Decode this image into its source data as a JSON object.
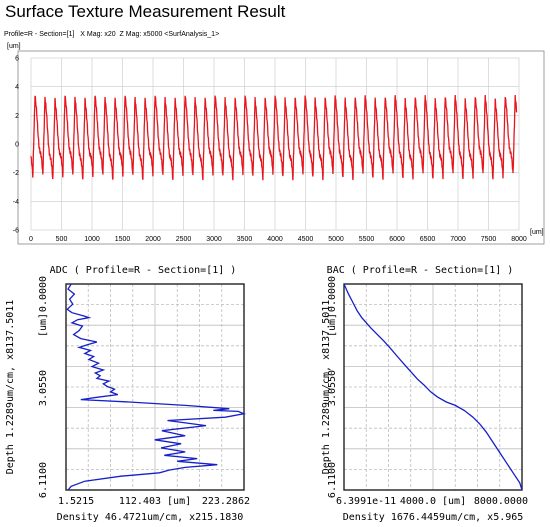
{
  "page_title": "Surface Texture Measurement Result",
  "profile_header": "Profile=R - Section=[1]   X Mag: x20  Z Mag: x5000 <SurfAnalysis_1>",
  "colors": {
    "profile": "#e8141c",
    "curve": "#1520c8",
    "grid": "#bdbdbd",
    "frame": "#222222"
  },
  "chart_data": [
    {
      "type": "line",
      "name": "profile",
      "unit_x": "[um]",
      "unit_y": "[um]",
      "xlim": [
        0,
        8000
      ],
      "ylim": [
        -6,
        6
      ],
      "xticks": [
        "0",
        "500",
        "1000",
        "1500",
        "2000",
        "2500",
        "3000",
        "3500",
        "4000",
        "4500",
        "5000",
        "5500",
        "6000",
        "6500",
        "7000",
        "7500",
        "8000"
      ],
      "yticks": [
        "6",
        "4",
        "2",
        "0",
        "-2",
        "-4",
        "-6"
      ],
      "x_start": 0,
      "x_end": 7960,
      "period": 164,
      "peak_value": 3.3,
      "trough_value": -2.3,
      "grid": true
    },
    {
      "type": "line",
      "title": "ADC ( Profile=R - Section=[1] )",
      "ylabel": "Depth 1.2289um/cm, x8137.5011",
      "xlabel": "Density 46.4721um/cm, x215.1830",
      "ytick_labels": [
        "0.0000",
        "[um]",
        "3.0550",
        "6.1100"
      ],
      "xtick_labels": [
        "1.5215",
        "112.403 [um]",
        "223.2862"
      ],
      "xlim": [
        1.5215,
        223.2862
      ],
      "ylim": [
        0,
        6.11
      ],
      "x": [
        8,
        4,
        12,
        6,
        10,
        3,
        9,
        24,
        30,
        16,
        9,
        22,
        18,
        11,
        20,
        40,
        28,
        18,
        32,
        25,
        36,
        30,
        42,
        34,
        48,
        38,
        44,
        40,
        55,
        48,
        53,
        62,
        57,
        66,
        40,
        20,
        80,
        150,
        205,
        185,
        216,
        223,
        200,
        128,
        176,
        121,
        150,
        112,
        145,
        120,
        150,
        124,
        165,
        140,
        190,
        150,
        130,
        118,
        70,
        25,
        8,
        4
      ],
      "y": [
        0.0,
        0.15,
        0.3,
        0.45,
        0.6,
        0.75,
        0.85,
        0.95,
        1.0,
        1.06,
        1.15,
        1.25,
        1.38,
        1.5,
        1.62,
        1.72,
        1.8,
        1.88,
        1.97,
        2.06,
        2.15,
        2.24,
        2.35,
        2.45,
        2.55,
        2.64,
        2.72,
        2.8,
        2.88,
        2.96,
        3.04,
        3.12,
        3.2,
        3.28,
        3.36,
        3.43,
        3.5,
        3.6,
        3.7,
        3.75,
        3.78,
        3.85,
        3.95,
        4.05,
        4.2,
        4.35,
        4.5,
        4.62,
        4.74,
        4.86,
        4.98,
        5.08,
        5.18,
        5.26,
        5.36,
        5.44,
        5.52,
        5.6,
        5.7,
        5.85,
        6.0,
        6.11
      ],
      "grid": true
    },
    {
      "type": "line",
      "title": "BAC ( Profile=R - Section=[1] )",
      "ylabel": "Depth 1.2289um/cm, x8137.5011",
      "xlabel": "Density 1676.4459um/cm, x5.965",
      "ytick_labels": [
        "0.0000",
        "[um]",
        "3.0550",
        "6.1100"
      ],
      "xtick_labels": [
        "6.3991e-11",
        "4000.0 [um]",
        "8000.0000"
      ],
      "xlim": [
        0,
        8000
      ],
      "ylim": [
        0,
        6.11
      ],
      "x": [
        0,
        200,
        400,
        600,
        800,
        1000,
        1200,
        1500,
        1800,
        2100,
        2400,
        2700,
        3000,
        3300,
        3600,
        3900,
        4200,
        4600,
        5000,
        5400,
        5800,
        6100,
        6400,
        6700,
        7000,
        7300,
        7600,
        7900,
        8000
      ],
      "y": [
        0.0,
        0.3,
        0.55,
        0.8,
        1.0,
        1.15,
        1.3,
        1.5,
        1.7,
        1.92,
        2.15,
        2.38,
        2.6,
        2.82,
        3.0,
        3.2,
        3.35,
        3.5,
        3.6,
        3.75,
        3.95,
        4.15,
        4.4,
        4.7,
        5.0,
        5.3,
        5.6,
        5.9,
        6.11
      ],
      "grid": true
    }
  ]
}
